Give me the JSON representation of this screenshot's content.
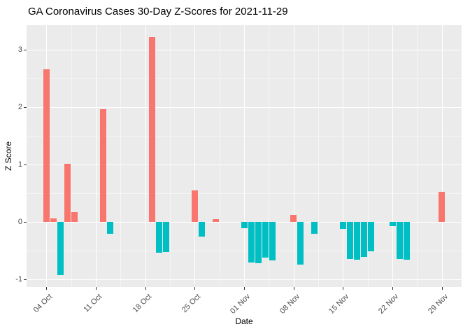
{
  "chart_data": {
    "type": "bar",
    "title": "GA Coronavirus Cases 30-Day Z-Scores for 2021-11-29",
    "xlabel": "Date",
    "ylabel": "Z Score",
    "ylim": [
      -1.13,
      3.42
    ],
    "y_ticks": [
      -1,
      0,
      1,
      2,
      3
    ],
    "x_ticks": [
      {
        "date": "2021-10-04",
        "label": "04 Oct"
      },
      {
        "date": "2021-10-11",
        "label": "11 Oct"
      },
      {
        "date": "2021-10-18",
        "label": "18 Oct"
      },
      {
        "date": "2021-10-25",
        "label": "25 Oct"
      },
      {
        "date": "2021-11-01",
        "label": "01 Nov"
      },
      {
        "date": "2021-11-08",
        "label": "08 Nov"
      },
      {
        "date": "2021-11-15",
        "label": "15 Nov"
      },
      {
        "date": "2021-11-22",
        "label": "22 Nov"
      },
      {
        "date": "2021-11-29",
        "label": "29 Nov"
      }
    ],
    "grid": true,
    "legend": "none",
    "colors": {
      "positive": "#F8766D",
      "negative": "#00BFC4",
      "panel_background": "#EBEBEB",
      "grid": "#FFFFFF",
      "axis_text": "#4D4D4D",
      "title_text": "#000000"
    },
    "bars": [
      {
        "date": "2021-10-04",
        "value": 2.65
      },
      {
        "date": "2021-10-05",
        "value": 0.06
      },
      {
        "date": "2021-10-06",
        "value": -0.92
      },
      {
        "date": "2021-10-07",
        "value": 1.01
      },
      {
        "date": "2021-10-08",
        "value": 0.17
      },
      {
        "date": "2021-10-12",
        "value": 1.96
      },
      {
        "date": "2021-10-13",
        "value": -0.21
      },
      {
        "date": "2021-10-19",
        "value": 3.21
      },
      {
        "date": "2021-10-20",
        "value": -0.53
      },
      {
        "date": "2021-10-21",
        "value": -0.52
      },
      {
        "date": "2021-10-25",
        "value": 0.55
      },
      {
        "date": "2021-10-26",
        "value": -0.25
      },
      {
        "date": "2021-10-28",
        "value": 0.05
      },
      {
        "date": "2021-11-01",
        "value": -0.11
      },
      {
        "date": "2021-11-02",
        "value": -0.7
      },
      {
        "date": "2021-11-03",
        "value": -0.72
      },
      {
        "date": "2021-11-04",
        "value": -0.62
      },
      {
        "date": "2021-11-05",
        "value": -0.67
      },
      {
        "date": "2021-11-08",
        "value": 0.12
      },
      {
        "date": "2021-11-09",
        "value": -0.74
      },
      {
        "date": "2021-11-11",
        "value": -0.2
      },
      {
        "date": "2021-11-15",
        "value": -0.12
      },
      {
        "date": "2021-11-16",
        "value": -0.64
      },
      {
        "date": "2021-11-17",
        "value": -0.66
      },
      {
        "date": "2021-11-18",
        "value": -0.61
      },
      {
        "date": "2021-11-19",
        "value": -0.51
      },
      {
        "date": "2021-11-22",
        "value": -0.07
      },
      {
        "date": "2021-11-23",
        "value": -0.64
      },
      {
        "date": "2021-11-24",
        "value": -0.66
      },
      {
        "date": "2021-11-29",
        "value": 0.52
      }
    ]
  }
}
